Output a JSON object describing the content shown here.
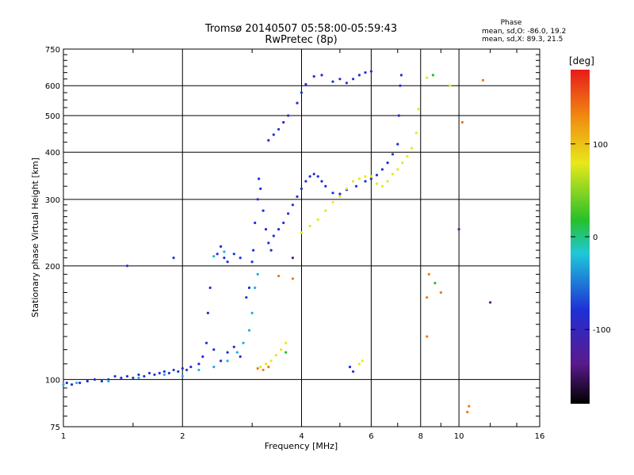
{
  "chart_data": {
    "type": "scatter",
    "title": "Tromsø 20140507 05:58:00-05:59:43",
    "subtitle": "RwPretec (8p)",
    "xlabel": "Frequency [MHz]",
    "ylabel": "Stationary phase Virtual Height [km]",
    "x_scale": "log",
    "y_scale": "log",
    "xlim": [
      1,
      16
    ],
    "ylim": [
      75,
      750
    ],
    "x_ticks": [
      1,
      2,
      4,
      6,
      8,
      10,
      16
    ],
    "y_ticks": [
      75,
      100,
      200,
      300,
      400,
      500,
      600,
      750
    ],
    "grid": true,
    "phase_info": {
      "heading": "Phase",
      "line1": "mean, sd,O:  -86.0, 19.2",
      "line2": "mean, sd,X:  89.3, 21.5"
    },
    "colorbar": {
      "label": "[deg]",
      "ticks": [
        100,
        0,
        -100
      ],
      "tick_labels": [
        "100",
        "0",
        "-100"
      ],
      "range": [
        -180,
        180
      ]
    },
    "series": [
      {
        "color_code": "blue",
        "phase_mean": -100,
        "points": [
          [
            1.02,
            98
          ],
          [
            1.05,
            97
          ],
          [
            1.1,
            98
          ],
          [
            1.15,
            99
          ],
          [
            1.2,
            100
          ],
          [
            1.25,
            99
          ],
          [
            1.3,
            100
          ],
          [
            1.35,
            102
          ],
          [
            1.4,
            101
          ],
          [
            1.45,
            102
          ],
          [
            1.5,
            101
          ],
          [
            1.55,
            103
          ],
          [
            1.6,
            102
          ],
          [
            1.65,
            104
          ],
          [
            1.7,
            103
          ],
          [
            1.75,
            104
          ],
          [
            1.8,
            105
          ],
          [
            1.85,
            104
          ],
          [
            1.9,
            106
          ],
          [
            1.95,
            105
          ],
          [
            2.0,
            107
          ],
          [
            2.05,
            106
          ],
          [
            2.1,
            108
          ],
          [
            2.2,
            110
          ],
          [
            2.25,
            115
          ],
          [
            2.3,
            125
          ],
          [
            2.32,
            150
          ],
          [
            2.35,
            175
          ],
          [
            2.4,
            120
          ],
          [
            2.5,
            112
          ],
          [
            2.6,
            118
          ],
          [
            2.7,
            122
          ],
          [
            2.8,
            115
          ],
          [
            2.9,
            165
          ],
          [
            2.95,
            175
          ],
          [
            3.0,
            205
          ],
          [
            3.02,
            220
          ],
          [
            3.05,
            260
          ],
          [
            3.1,
            300
          ],
          [
            3.12,
            340
          ],
          [
            3.15,
            320
          ],
          [
            3.2,
            280
          ],
          [
            3.25,
            250
          ],
          [
            3.3,
            230
          ],
          [
            3.35,
            220
          ],
          [
            3.4,
            240
          ],
          [
            3.5,
            250
          ],
          [
            3.6,
            260
          ],
          [
            3.7,
            275
          ],
          [
            3.8,
            290
          ],
          [
            3.9,
            305
          ],
          [
            4.0,
            320
          ],
          [
            4.1,
            335
          ],
          [
            4.2,
            345
          ],
          [
            4.3,
            350
          ],
          [
            4.4,
            345
          ],
          [
            4.5,
            335
          ],
          [
            4.6,
            325
          ],
          [
            4.8,
            312
          ],
          [
            5.0,
            310
          ],
          [
            5.2,
            318
          ],
          [
            5.5,
            325
          ],
          [
            5.8,
            335
          ],
          [
            6.0,
            340
          ],
          [
            6.2,
            348
          ],
          [
            6.4,
            360
          ],
          [
            6.6,
            375
          ],
          [
            6.8,
            395
          ],
          [
            7.0,
            420
          ],
          [
            7.05,
            500
          ],
          [
            7.1,
            600
          ],
          [
            7.15,
            640
          ],
          [
            3.3,
            430
          ],
          [
            3.4,
            445
          ],
          [
            3.5,
            460
          ],
          [
            3.6,
            480
          ],
          [
            3.7,
            500
          ],
          [
            3.9,
            540
          ],
          [
            4.0,
            575
          ],
          [
            4.1,
            605
          ],
          [
            4.3,
            635
          ],
          [
            4.5,
            640
          ],
          [
            4.8,
            615
          ],
          [
            5.0,
            625
          ],
          [
            5.2,
            610
          ],
          [
            5.4,
            625
          ],
          [
            5.6,
            640
          ],
          [
            5.8,
            650
          ],
          [
            6.0,
            655
          ],
          [
            1.45,
            200
          ],
          [
            1.9,
            210
          ],
          [
            2.45,
            215
          ],
          [
            2.5,
            225
          ],
          [
            2.55,
            210
          ],
          [
            2.6,
            205
          ],
          [
            2.7,
            215
          ],
          [
            2.8,
            210
          ],
          [
            5.3,
            108
          ],
          [
            5.4,
            105
          ]
        ],
        "color": "#1f2fd6"
      },
      {
        "color_code": "cyan",
        "phase_mean": -40,
        "points": [
          [
            1.0,
            97
          ],
          [
            1.08,
            98
          ],
          [
            1.3,
            99
          ],
          [
            1.55,
            101
          ],
          [
            1.8,
            103
          ],
          [
            2.0,
            102
          ],
          [
            2.2,
            106
          ],
          [
            2.4,
            108
          ],
          [
            2.6,
            112
          ],
          [
            2.75,
            118
          ],
          [
            2.85,
            125
          ],
          [
            2.95,
            135
          ],
          [
            3.0,
            150
          ],
          [
            3.05,
            175
          ],
          [
            3.1,
            190
          ],
          [
            2.4,
            212
          ],
          [
            2.55,
            218
          ]
        ],
        "color": "#1fb0e0"
      },
      {
        "color_code": "yellow",
        "phase_mean": 110,
        "points": [
          [
            3.15,
            108
          ],
          [
            3.25,
            110
          ],
          [
            3.35,
            112
          ],
          [
            3.45,
            116
          ],
          [
            3.55,
            120
          ],
          [
            3.65,
            125
          ],
          [
            4.0,
            245
          ],
          [
            4.2,
            255
          ],
          [
            4.4,
            265
          ],
          [
            4.6,
            280
          ],
          [
            4.8,
            295
          ],
          [
            5.0,
            305
          ],
          [
            5.2,
            320
          ],
          [
            5.4,
            335
          ],
          [
            5.6,
            340
          ],
          [
            5.8,
            345
          ],
          [
            6.0,
            345
          ],
          [
            6.2,
            330
          ],
          [
            6.4,
            325
          ],
          [
            6.6,
            335
          ],
          [
            6.8,
            350
          ],
          [
            7.0,
            360
          ],
          [
            7.2,
            375
          ],
          [
            7.4,
            390
          ],
          [
            7.6,
            410
          ],
          [
            7.8,
            450
          ],
          [
            7.9,
            520
          ],
          [
            8.3,
            630
          ],
          [
            8.6,
            640
          ],
          [
            5.6,
            110
          ],
          [
            5.7,
            112
          ],
          [
            9.5,
            600
          ]
        ],
        "color": "#e8e81a"
      },
      {
        "color_code": "orange-red",
        "phase_mean": 150,
        "points": [
          [
            3.2,
            106
          ],
          [
            3.3,
            108
          ],
          [
            3.1,
            107
          ],
          [
            8.4,
            190
          ],
          [
            8.3,
            165
          ],
          [
            10.5,
            82
          ],
          [
            8.3,
            130
          ],
          [
            9.0,
            170
          ],
          [
            3.8,
            185
          ],
          [
            3.5,
            188
          ],
          [
            10.2,
            480
          ],
          [
            11.5,
            620
          ],
          [
            10.6,
            85
          ]
        ],
        "color": "#f07a10"
      },
      {
        "color_code": "green",
        "phase_mean": 40,
        "points": [
          [
            8.6,
            640
          ],
          [
            8.7,
            180
          ],
          [
            3.65,
            118
          ]
        ],
        "color": "#27c02a"
      },
      {
        "color_code": "purple",
        "phase_mean": -160,
        "points": [
          [
            3.8,
            210
          ],
          [
            10.0,
            250
          ],
          [
            12.0,
            160
          ]
        ],
        "color": "#5a1a8c"
      }
    ]
  }
}
